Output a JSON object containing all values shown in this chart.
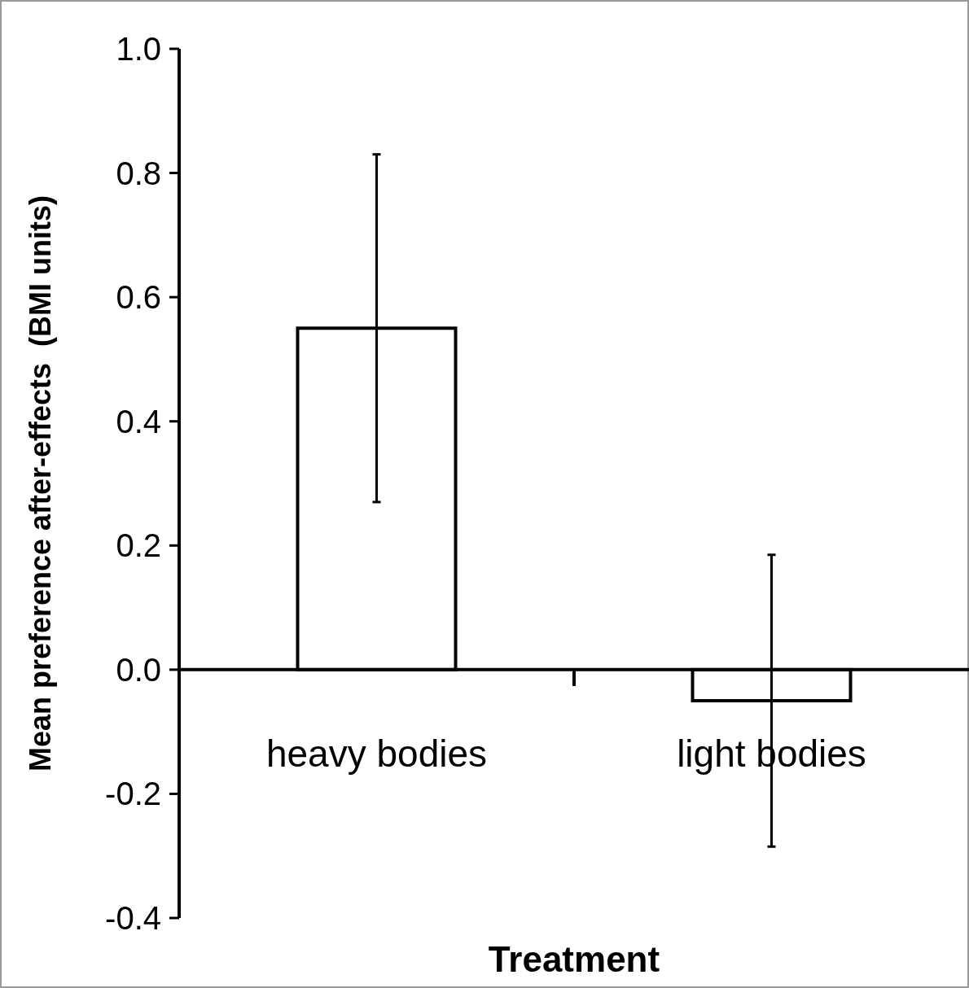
{
  "chart_data": {
    "type": "bar",
    "xlabel": "Treatment",
    "ylabel": "Mean preference after-effects  (BMI units)",
    "categories": [
      "heavy bodies",
      "light bodies"
    ],
    "values": [
      0.55,
      -0.05
    ],
    "errors": [
      0.28,
      0.235
    ],
    "color": "#ffffff",
    "ylim": [
      -0.4,
      1.0
    ],
    "yticks": [
      {
        "value": -0.4,
        "label": "-0.4"
      },
      {
        "value": -0.2,
        "label": "-0.2"
      },
      {
        "value": 0,
        "label": "0.0"
      },
      {
        "value": 0.2,
        "label": "0.2"
      },
      {
        "value": 0.4,
        "label": "0.4"
      },
      {
        "value": 0.6,
        "label": "0.6"
      },
      {
        "value": 0.8,
        "label": "0.8"
      },
      {
        "value": 1.0,
        "label": "1.0"
      }
    ],
    "grid": false
  }
}
